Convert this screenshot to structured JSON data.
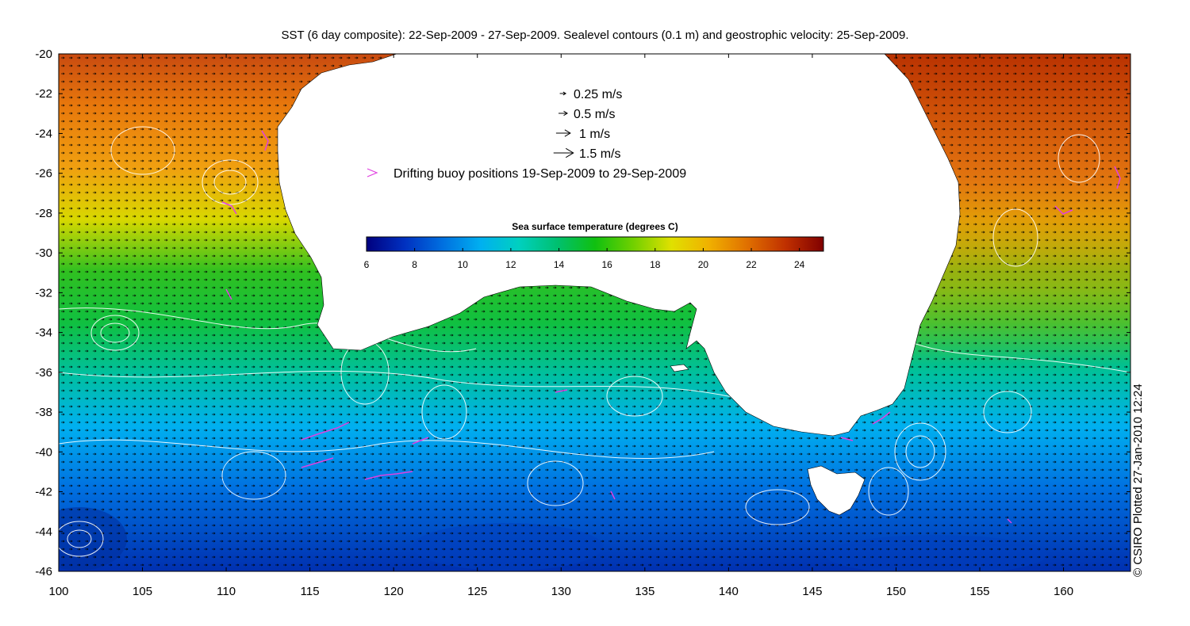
{
  "title": "SST (6 day composite): 22-Sep-2009 - 27-Sep-2009. Sealevel contours (0.1 m) and geostrophic velocity: 25-Sep-2009.",
  "credit": "© CSIRO Plotted 27-Jan-2010 12:24",
  "axes": {
    "lon_range": [
      100,
      164
    ],
    "lat_range": [
      -46,
      -20
    ],
    "x_ticks": [
      "100",
      "105",
      "110",
      "115",
      "120",
      "125",
      "130",
      "135",
      "140",
      "145",
      "150",
      "155",
      "160"
    ],
    "y_ticks": [
      "-20",
      "-22",
      "-24",
      "-26",
      "-28",
      "-30",
      "-32",
      "-34",
      "-36",
      "-38",
      "-40",
      "-42",
      "-44",
      "-46"
    ]
  },
  "velocity_legend": [
    {
      "label": "0.25 m/s",
      "speed": 0.25
    },
    {
      "label": "0.5 m/s",
      "speed": 0.5
    },
    {
      "label": "1 m/s",
      "speed": 1
    },
    {
      "label": "1.5 m/s",
      "speed": 1.5
    }
  ],
  "buoy_legend": {
    "label": "Drifting buoy positions 19-Sep-2009 to 29-Sep-2009",
    "color": "#e040e0"
  },
  "colorbar": {
    "title": "Sea surface temperature (degrees C)",
    "range": [
      6,
      25
    ],
    "ticks": [
      "6",
      "8",
      "10",
      "12",
      "14",
      "16",
      "18",
      "20",
      "22",
      "24"
    ],
    "colors": [
      "#00007f",
      "#0030c0",
      "#0070e0",
      "#00b0f0",
      "#00d0c0",
      "#00c070",
      "#10c010",
      "#70d000",
      "#e0e000",
      "#f0b000",
      "#e07000",
      "#c03000",
      "#800000"
    ]
  },
  "colors": {
    "land": "#ffffff",
    "contour": "#ffffff",
    "vector": "#000000"
  }
}
